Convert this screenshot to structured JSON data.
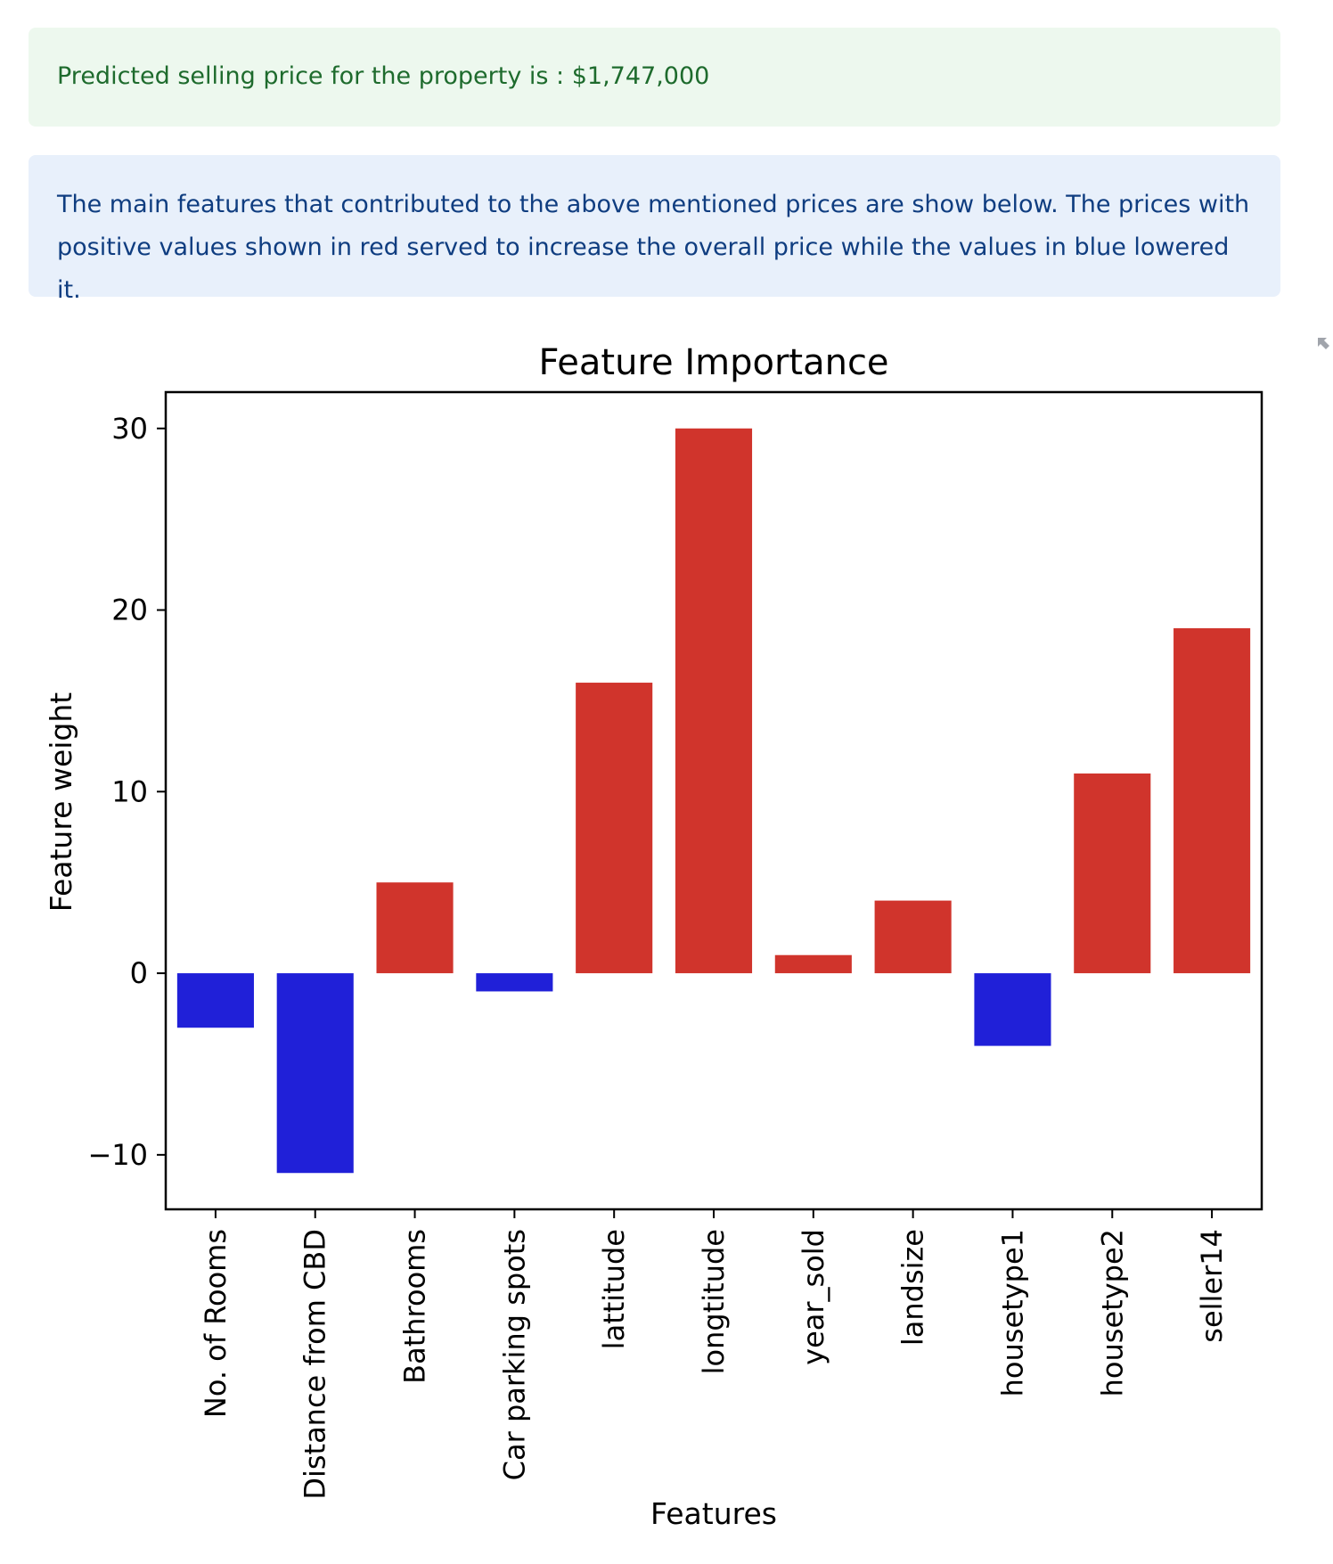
{
  "alerts": {
    "success_text": "Predicted selling price for the property is : $1,747,000",
    "info_text": "The main features that contributed to the above mentioned prices are show below. The prices with positive values shown in red served to increase the overall price while the values in blue lowered it."
  },
  "icons": {
    "fullscreen": "expand-icon"
  },
  "colors": {
    "positive": "#d0342c",
    "negative": "#2020d8",
    "success_bg": "#edf8ee",
    "success_text": "#1e6b2d",
    "info_bg": "#e8f0fb",
    "info_text": "#0f3d80"
  },
  "chart_data": {
    "type": "bar",
    "title": "Feature Importance",
    "xlabel": "Features",
    "ylabel": "Feature weight",
    "categories": [
      "No. of Rooms",
      "Distance from CBD",
      "Bathrooms",
      "Car parking spots",
      "lattitude",
      "longtitude",
      "year_sold",
      "landsize",
      "housetype1",
      "housetype2",
      "seller14"
    ],
    "values": [
      -3,
      -11,
      5,
      -1,
      16,
      30,
      1,
      4,
      -4,
      11,
      19
    ],
    "ylim": [
      -13,
      32
    ],
    "yticks": [
      -10,
      0,
      10,
      20,
      30
    ],
    "ytick_labels": [
      "−10",
      "0",
      "10",
      "20",
      "30"
    ],
    "grid": false,
    "legend": "none"
  }
}
